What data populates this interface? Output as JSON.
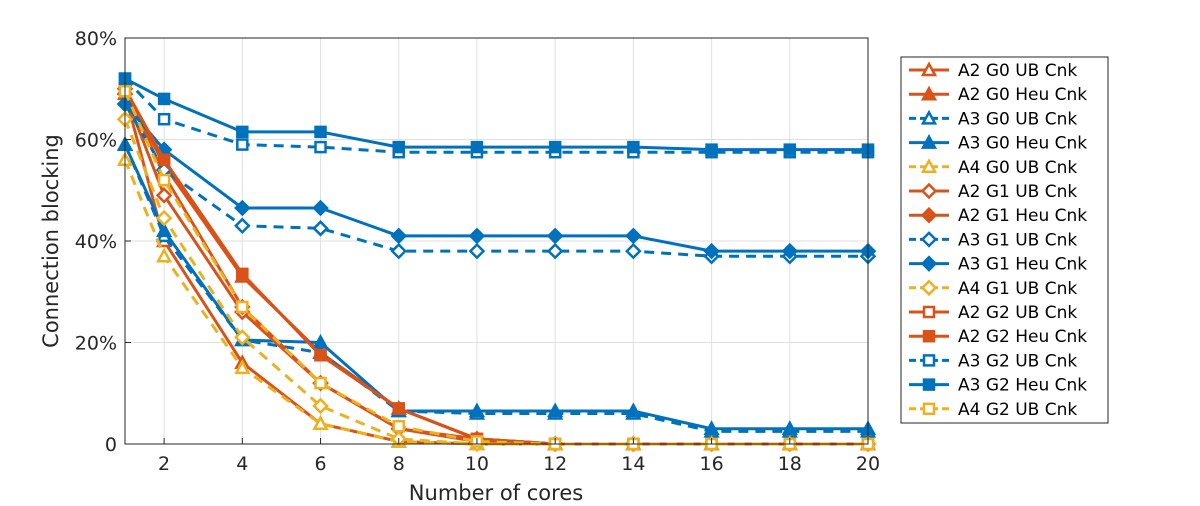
{
  "chart_data": {
    "type": "line",
    "xlabel": "Number of cores",
    "ylabel": "Connection blocking",
    "x": [
      1,
      2,
      4,
      6,
      8,
      10,
      12,
      14,
      16,
      18,
      20
    ],
    "xticks": [
      2,
      4,
      6,
      8,
      10,
      12,
      14,
      16,
      18,
      20
    ],
    "xtick_labels": [
      "2",
      "4",
      "6",
      "8",
      "10",
      "12",
      "14",
      "16",
      "18",
      "20"
    ],
    "xlim": [
      1,
      20
    ],
    "yticks": [
      0,
      0.2,
      0.4,
      0.6,
      0.8
    ],
    "ytick_labels": [
      "0",
      "20%",
      "40%",
      "60%",
      "80%"
    ],
    "ylim": [
      0,
      0.8
    ],
    "grid": true,
    "legend_position": "outside-right",
    "colors": {
      "A2": "#D95319",
      "A3": "#0072BD",
      "A4": "#EDB120"
    },
    "series": [
      {
        "name": "A2 G0 UB Cnk",
        "color": "#D95319",
        "dash": false,
        "marker": "triangle",
        "filled": false,
        "values": [
          0.69,
          0.4,
          0.16,
          0.04,
          0.005,
          0,
          0,
          0,
          0,
          0,
          0
        ]
      },
      {
        "name": "A2 G0 Heu Cnk",
        "color": "#D95319",
        "dash": false,
        "marker": "triangle",
        "filled": true,
        "values": [
          0.7,
          0.55,
          0.33,
          0.18,
          0.07,
          0.01,
          0,
          0,
          0,
          0,
          0
        ]
      },
      {
        "name": "A3 G0 UB Cnk",
        "color": "#0072BD",
        "dash": true,
        "marker": "triangle",
        "filled": false,
        "values": [
          0.59,
          0.41,
          0.205,
          0.18,
          0.065,
          0.06,
          0.06,
          0.06,
          0.025,
          0.025,
          0.025
        ]
      },
      {
        "name": "A3 G0 Heu Cnk",
        "color": "#0072BD",
        "dash": false,
        "marker": "triangle",
        "filled": true,
        "values": [
          0.59,
          0.42,
          0.205,
          0.2,
          0.065,
          0.065,
          0.065,
          0.065,
          0.03,
          0.03,
          0.03
        ]
      },
      {
        "name": "A4 G0 UB Cnk",
        "color": "#EDB120",
        "dash": true,
        "marker": "triangle",
        "filled": false,
        "values": [
          0.56,
          0.37,
          0.15,
          0.04,
          0.005,
          0,
          0,
          0,
          0,
          0,
          0
        ]
      },
      {
        "name": "A2 G1 UB Cnk",
        "color": "#D95319",
        "dash": false,
        "marker": "diamond",
        "filled": false,
        "values": [
          0.69,
          0.49,
          0.26,
          0.12,
          0.03,
          0.01,
          0,
          0,
          0,
          0,
          0
        ]
      },
      {
        "name": "A2 G1 Heu Cnk",
        "color": "#D95319",
        "dash": false,
        "marker": "diamond",
        "filled": true,
        "values": [
          0.7,
          0.53,
          0.27,
          0.12,
          0.03,
          0.005,
          0,
          0,
          0,
          0,
          0
        ]
      },
      {
        "name": "A3 G1 UB Cnk",
        "color": "#0072BD",
        "dash": true,
        "marker": "diamond",
        "filled": false,
        "values": [
          0.67,
          0.54,
          0.43,
          0.425,
          0.38,
          0.38,
          0.38,
          0.38,
          0.37,
          0.37,
          0.37
        ]
      },
      {
        "name": "A3 G1 Heu Cnk",
        "color": "#0072BD",
        "dash": false,
        "marker": "diamond",
        "filled": true,
        "values": [
          0.67,
          0.58,
          0.465,
          0.465,
          0.41,
          0.41,
          0.41,
          0.41,
          0.38,
          0.38,
          0.38
        ]
      },
      {
        "name": "A4 G1 UB Cnk",
        "color": "#EDB120",
        "dash": true,
        "marker": "diamond",
        "filled": false,
        "values": [
          0.64,
          0.445,
          0.21,
          0.075,
          0.01,
          0,
          0,
          0,
          0,
          0,
          0
        ]
      },
      {
        "name": "A2 G2 UB Cnk",
        "color": "#D95319",
        "dash": false,
        "marker": "square",
        "filled": false,
        "values": [
          0.7,
          0.56,
          0.335,
          0.175,
          0.07,
          0.01,
          0,
          0,
          0,
          0,
          0
        ]
      },
      {
        "name": "A2 G2 Heu Cnk",
        "color": "#D95319",
        "dash": false,
        "marker": "square",
        "filled": true,
        "values": [
          0.7,
          0.56,
          0.335,
          0.175,
          0.07,
          0.01,
          0,
          0,
          0,
          0,
          0
        ]
      },
      {
        "name": "A3 G2 UB Cnk",
        "color": "#0072BD",
        "dash": true,
        "marker": "square",
        "filled": false,
        "values": [
          0.72,
          0.64,
          0.59,
          0.585,
          0.575,
          0.575,
          0.575,
          0.575,
          0.575,
          0.575,
          0.575
        ]
      },
      {
        "name": "A3 G2 Heu Cnk",
        "color": "#0072BD",
        "dash": false,
        "marker": "square",
        "filled": true,
        "values": [
          0.72,
          0.68,
          0.615,
          0.615,
          0.585,
          0.585,
          0.585,
          0.585,
          0.58,
          0.58,
          0.58
        ]
      },
      {
        "name": "A4 G2 UB Cnk",
        "color": "#EDB120",
        "dash": true,
        "marker": "square",
        "filled": false,
        "values": [
          0.695,
          0.52,
          0.27,
          0.12,
          0.035,
          0.005,
          0,
          0,
          0,
          0,
          0
        ]
      }
    ]
  }
}
